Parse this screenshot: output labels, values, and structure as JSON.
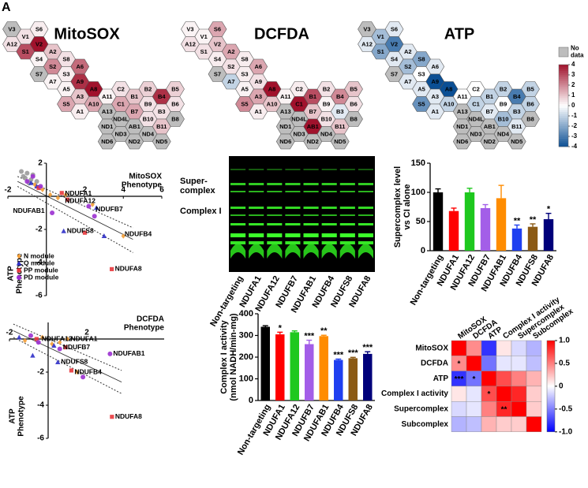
{
  "panel_label": "A",
  "chart_data": [
    {
      "type": "hexmap",
      "title": "MitoSOX",
      "labels": [
        "V3",
        "S6",
        "V1",
        "A12",
        "V2",
        "S1",
        "A2",
        "S4",
        "S8",
        "S2",
        "A6",
        "S7",
        "S3",
        "A7",
        "A9",
        "A5",
        "A8",
        "S5",
        "A3",
        "A10",
        "A1",
        "A11",
        "A13",
        "ND1",
        "ND6",
        "C2",
        "C1",
        "ND4L",
        "ND3",
        "B1",
        "B7",
        "AB1",
        "ND2",
        "B2",
        "B9",
        "B10",
        "ND4",
        "B4",
        "B3",
        "B11",
        "ND5",
        "B5",
        "B6",
        "B8"
      ],
      "values": [
        null,
        0.3,
        0.5,
        0.5,
        4,
        3,
        1,
        0.2,
        0.5,
        2,
        2.5,
        null,
        0.3,
        0.2,
        3.5,
        0.2,
        4,
        1.5,
        1,
        1.5,
        0.3,
        0.2,
        null,
        null,
        null,
        0.5,
        1.5,
        null,
        null,
        1,
        1.5,
        null,
        null,
        0.8,
        0.5,
        0.5,
        null,
        3.5,
        0.5,
        1,
        null,
        0.8,
        0.5,
        null
      ]
    },
    {
      "type": "hexmap",
      "title": "DCFDA",
      "labels": [
        "V3",
        "S6",
        "V1",
        "A12",
        "V2",
        "S1",
        "A2",
        "S4",
        "S8",
        "S2",
        "A6",
        "S7",
        "S3",
        "A7",
        "A9",
        "A5",
        "A8",
        "S5",
        "A3",
        "A10",
        "A1",
        "A11",
        "A13",
        "ND1",
        "ND6",
        "C2",
        "C1",
        "ND4L",
        "ND3",
        "B1",
        "B7",
        "AB1",
        "ND2",
        "B2",
        "B9",
        "B10",
        "ND4",
        "B4",
        "B3",
        "B11",
        "ND5",
        "B5",
        "B6",
        "B8"
      ],
      "values": [
        0.2,
        1.5,
        0.2,
        0.5,
        1,
        0.5,
        1.5,
        0.3,
        0.3,
        0.5,
        1.5,
        null,
        0.3,
        -1,
        0.5,
        0.2,
        4,
        2,
        1.5,
        1,
        0.3,
        0.2,
        null,
        null,
        null,
        0.3,
        4,
        null,
        null,
        3,
        1,
        4,
        null,
        0.5,
        0.2,
        0.5,
        null,
        2,
        -0.5,
        1,
        null,
        1,
        0.5,
        null
      ]
    },
    {
      "type": "hexmap",
      "title": "ATP",
      "labels": [
        "V3",
        "S6",
        "V1",
        "A12",
        "V2",
        "S1",
        "A2",
        "S4",
        "S8",
        "S2",
        "A6",
        "S7",
        "S3",
        "A7",
        "A9",
        "A5",
        "A8",
        "S5",
        "A3",
        "A10",
        "A1",
        "A11",
        "A13",
        "ND1",
        "ND6",
        "C2",
        "C1",
        "ND4L",
        "ND3",
        "B1",
        "B7",
        "AB1",
        "ND2",
        "B2",
        "B9",
        "B10",
        "ND4",
        "B4",
        "B3",
        "B11",
        "ND5",
        "B5",
        "B6",
        "B8"
      ],
      "values": [
        null,
        -0.5,
        -1.5,
        -0.5,
        -3,
        -2,
        -0.5,
        -0.5,
        -2,
        -1.5,
        -0.5,
        null,
        0,
        -0.5,
        -4,
        -0.5,
        -4,
        -2.5,
        -0.5,
        -1,
        -0.5,
        0,
        null,
        null,
        null,
        0,
        -1,
        null,
        null,
        -1,
        -0.5,
        null,
        null,
        -1,
        0,
        -1.5,
        null,
        -3,
        -1,
        -0.5,
        null,
        -1,
        -1,
        null
      ]
    },
    {
      "type": "colorbar",
      "no_data_label": "No\ndata",
      "low_color": "#0b4f94",
      "high_color": "#a0122c",
      "no_data_color": "#bdbdbd",
      "ylim": [
        -4,
        4
      ],
      "yticks": [
        4,
        3,
        2,
        1,
        0,
        -1,
        -2,
        -3,
        -4
      ]
    },
    {
      "type": "scatter",
      "xlabel": "MitoSOX\nPhenotype",
      "ylabel": "ATP\nPhenotype",
      "xlim": [
        -2,
        6
      ],
      "ylim": [
        -6,
        2
      ],
      "xticks": [
        -2,
        2,
        4,
        6
      ],
      "yticks": [
        2,
        -2,
        -4,
        -6
      ],
      "legend": "lower left",
      "series": [
        {
          "color": "#9a9a9a",
          "marker": "circle",
          "x": [
            -1.2,
            -1,
            -0.8,
            -0.9,
            -1.1,
            -0.7,
            -0.5,
            -1.3
          ],
          "y": [
            1.2,
            1.4,
            1,
            0.8,
            1.1,
            1.3,
            0.9,
            1.5
          ]
        },
        {
          "name": "N module",
          "color": "#f39c34",
          "marker": "diamond",
          "x": [
            -0.6,
            -0.2,
            0.2,
            0.6,
            1,
            2.4,
            4
          ],
          "y": [
            0.7,
            0.4,
            0.1,
            -0.1,
            0.1,
            -0.5,
            -2.4
          ]
        },
        {
          "name": "Q module",
          "color": "#2f2fc8",
          "marker": "triangle",
          "x": [
            -0.8,
            -0.5,
            0.9,
            2.6,
            3
          ],
          "y": [
            0.8,
            0.6,
            -2.1,
            -0.7,
            -2.4
          ]
        },
        {
          "name": "PP module",
          "color": "#e8383d",
          "marker": "square",
          "x": [
            -0.4,
            0.8,
            1.1,
            2,
            3.4
          ],
          "y": [
            0.5,
            0.2,
            -0.2,
            -2.2,
            -4.4
          ]
        },
        {
          "name": "PD module",
          "color": "#9b30d0",
          "marker": "circle",
          "x": [
            -1,
            -0.7,
            -0.3,
            0.3,
            2.2,
            2.5
          ],
          "y": [
            0.9,
            1.2,
            0.6,
            -1,
            -0.6,
            -1.2
          ]
        }
      ],
      "lines": [
        {
          "dash": false,
          "x": [
            -1.5,
            4.5
          ],
          "y": [
            0.9,
            -2.6
          ]
        },
        {
          "dash": true,
          "x": [
            -1.5,
            4.5
          ],
          "y": [
            1.2,
            -1.9
          ]
        },
        {
          "dash": true,
          "x": [
            -1.5,
            4.5
          ],
          "y": [
            0.6,
            -3.4
          ]
        }
      ],
      "annotations": [
        {
          "text": "NDUFA1",
          "x": 0.8,
          "y": 0.15
        },
        {
          "text": "NDUFA12",
          "x": 0.8,
          "y": -0.3
        },
        {
          "text": "NDUFB7",
          "x": 2.4,
          "y": -0.8
        },
        {
          "text": "NDUFAB1",
          "x": -1.9,
          "y": -0.9
        },
        {
          "text": "NDUFS8",
          "x": 0.9,
          "y": -2.1
        },
        {
          "text": "NDUFB4",
          "x": 3.9,
          "y": -2.3
        },
        {
          "text": "NDUFA8",
          "x": 3.4,
          "y": -4.4
        }
      ]
    },
    {
      "type": "scatter",
      "xlabel": "DCFDA\nPhenotype",
      "ylabel": "ATP\nPhenotype",
      "xlim": [
        -2,
        6
      ],
      "ylim": [
        -6,
        1
      ],
      "xticks": [
        -2,
        2
      ],
      "yticks": [
        -2,
        -4,
        -6
      ],
      "series": [
        {
          "color": "#f39c34",
          "marker": "diamond",
          "x": [
            -1.2,
            -0.3,
            0.2,
            0.6,
            1,
            1.5
          ],
          "y": [
            -0.1,
            0.1,
            -0.3,
            -0.2,
            0,
            -2
          ]
        },
        {
          "color": "#2f2fc8",
          "marker": "triangle",
          "x": [
            -1.5,
            -0.8,
            0.3,
            0.5
          ],
          "y": [
            0.1,
            -1,
            -0.4,
            -1.4
          ]
        },
        {
          "color": "#e8383d",
          "marker": "square",
          "x": [
            -0.6,
            0.9,
            1.2,
            3.3
          ],
          "y": [
            0,
            -0.5,
            -1.9,
            -4.7
          ]
        },
        {
          "color": "#9b30d0",
          "marker": "circle",
          "x": [
            -0.9,
            -0.5,
            0.6,
            3.2,
            1.8
          ],
          "y": [
            0.2,
            -0.2,
            -0.6,
            -0.9,
            -2.3
          ]
        }
      ],
      "lines": [
        {
          "dash": false,
          "x": [
            -1.8,
            3.8
          ],
          "y": [
            0.5,
            -2.6
          ]
        },
        {
          "dash": true,
          "x": [
            -1.8,
            3.8
          ],
          "y": [
            0.9,
            -1.9
          ]
        },
        {
          "dash": true,
          "x": [
            -1.8,
            3.8
          ],
          "y": [
            0.1,
            -3.3
          ]
        }
      ],
      "annotations": [
        {
          "text": "NDUFA12",
          "x": -0.5,
          "y": 0
        },
        {
          "text": "NDUFA1",
          "x": 1,
          "y": 0
        },
        {
          "text": "NDUFB7",
          "x": 0.6,
          "y": -0.5
        },
        {
          "text": "NDUFAB1",
          "x": 3.2,
          "y": -0.9
        },
        {
          "text": "NDUFS8",
          "x": 0.5,
          "y": -1.4
        },
        {
          "text": "NDUFB4",
          "x": 1.2,
          "y": -2
        },
        {
          "text": "NDUFA8",
          "x": 3.3,
          "y": -4.7
        }
      ]
    },
    {
      "type": "image",
      "labels": [
        "Super-\ncomplex",
        "Complex I"
      ],
      "categories": [
        "Non-targeting",
        "NDUFA1",
        "NDUFA12",
        "NDUFB7",
        "NDUFAB1",
        "NDUFB4",
        "NDUFS8",
        "NDUFA8"
      ]
    },
    {
      "type": "bar",
      "ylabel": "Supercomplex level\nvs CI alone",
      "categories": [
        "Non-targeting",
        "NDUFA1",
        "NDUFA12",
        "NDUFB7",
        "NDUFAB1",
        "NDUFB4",
        "NDUFS8",
        "NDUFA8"
      ],
      "values": [
        100,
        68,
        100,
        73,
        90,
        38,
        41,
        54
      ],
      "errors": [
        6,
        5,
        7,
        6,
        22,
        6,
        5,
        10
      ],
      "significance": [
        null,
        null,
        null,
        null,
        null,
        "**",
        "**",
        "*"
      ],
      "colors": [
        "#000000",
        "#ff0000",
        "#1ec81e",
        "#a35ee8",
        "#ff8c00",
        "#1f3ff0",
        "#8b5a14",
        "#00007a"
      ],
      "ylim": [
        0,
        150
      ],
      "yticks": [
        0,
        50,
        100,
        150
      ]
    },
    {
      "type": "bar",
      "ylabel": "Complex I activity\n(nmol NADH/min-mg)",
      "categories": [
        "Non-targeting",
        "NDUFA1",
        "NDUFA12",
        "NDUFB7",
        "NDUFAB1",
        "NDUFB4",
        "NDUFS8",
        "NDUFA8"
      ],
      "values": [
        340,
        305,
        315,
        260,
        297,
        187,
        195,
        215
      ],
      "errors": [
        5,
        10,
        6,
        18,
        4,
        4,
        4,
        10
      ],
      "significance": [
        null,
        "*",
        null,
        "***",
        "**",
        "***",
        "***",
        "***"
      ],
      "colors": [
        "#000000",
        "#ff0000",
        "#1ec81e",
        "#a35ee8",
        "#ff8c00",
        "#1f3ff0",
        "#8b5a14",
        "#00007a"
      ],
      "ylim": [
        0,
        400
      ],
      "yticks": [
        0,
        100,
        200,
        300,
        400
      ]
    },
    {
      "type": "heatmap",
      "labels": [
        "MitoSOX",
        "DCFDA",
        "ATP",
        "Complex I activity",
        "Supercomplex",
        "Subcomplex"
      ],
      "matrix": [
        [
          1,
          0.45,
          -0.8,
          0.1,
          -0.15,
          -0.3
        ],
        [
          0.45,
          1,
          -0.55,
          -0.1,
          -0.1,
          -0.25
        ],
        [
          -0.8,
          -0.55,
          1,
          0.7,
          0.5,
          0.3
        ],
        [
          0.1,
          -0.1,
          0.7,
          1,
          0.85,
          0.2
        ],
        [
          -0.15,
          -0.1,
          0.5,
          0.85,
          1,
          0.2
        ],
        [
          -0.3,
          -0.25,
          0.3,
          0.2,
          0.2,
          1
        ]
      ],
      "annotations": [
        {
          "row": 1,
          "col": 0,
          "text": "*"
        },
        {
          "row": 2,
          "col": 0,
          "text": "***"
        },
        {
          "row": 2,
          "col": 1,
          "text": "*"
        },
        {
          "row": 3,
          "col": 2,
          "text": "*"
        },
        {
          "row": 4,
          "col": 3,
          "text": "**"
        }
      ],
      "clim": [
        -1,
        1
      ],
      "cticks": [
        {
          "value": 1,
          "label": "1.0"
        },
        0.5,
        0,
        -0.5,
        {
          "value": -1,
          "label": "-1.0"
        }
      ]
    }
  ]
}
